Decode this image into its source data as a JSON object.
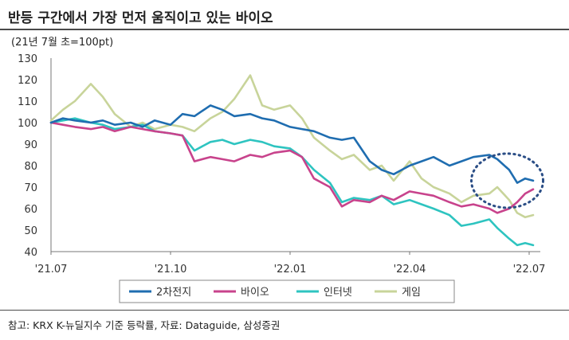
{
  "title": "반등 구간에서 가장 먼저 움직이고 있는 바이오",
  "unit_label": "(21년 7월 초=100pt)",
  "source": "참고: KRX K-뉴딜지수 기준 등락률, 자료: Dataguide, 삼성증권",
  "colors": {
    "2차전지": "#1f6db0",
    "바이오": "#c8438c",
    "인터넷": "#2ec4c0",
    "게임": "#c8d49a",
    "highlight": "#2b4e86"
  },
  "chart_data": {
    "type": "line",
    "x_ticks": [
      "'21.07",
      "'21.10",
      "'22.01",
      "'22.04",
      "'22.07"
    ],
    "ylim": [
      40,
      130
    ],
    "y_ticks": [
      40,
      50,
      60,
      70,
      80,
      90,
      100,
      110,
      120,
      130
    ],
    "x_range": [
      0,
      12.2
    ],
    "grid": false,
    "legend": "bottom",
    "annotation": "dotted circle highlighting late values",
    "series": [
      {
        "name": "2차전지",
        "color": "#1f6db0",
        "x": [
          0,
          0.3,
          0.6,
          1,
          1.3,
          1.6,
          2,
          2.3,
          2.6,
          3,
          3.3,
          3.6,
          4,
          4.3,
          4.6,
          5,
          5.3,
          5.6,
          6,
          6.3,
          6.6,
          7,
          7.3,
          7.6,
          8,
          8.3,
          8.6,
          9,
          9.3,
          9.6,
          10,
          10.3,
          10.6,
          11,
          11.2,
          11.5,
          11.7,
          11.9,
          12.1
        ],
        "y": [
          100,
          102,
          101,
          100,
          101,
          99,
          100,
          98,
          101,
          99,
          104,
          103,
          108,
          106,
          103,
          104,
          102,
          101,
          98,
          97,
          96,
          93,
          92,
          93,
          82,
          78,
          76,
          80,
          82,
          84,
          80,
          82,
          84,
          85,
          83,
          78,
          72,
          74,
          73
        ]
      },
      {
        "name": "바이오",
        "color": "#c8438c",
        "x": [
          0,
          0.3,
          0.6,
          1,
          1.3,
          1.6,
          2,
          2.3,
          2.6,
          3,
          3.3,
          3.6,
          4,
          4.3,
          4.6,
          5,
          5.3,
          5.6,
          6,
          6.3,
          6.6,
          7,
          7.3,
          7.6,
          8,
          8.3,
          8.6,
          9,
          9.3,
          9.6,
          10,
          10.3,
          10.6,
          11,
          11.2,
          11.5,
          11.7,
          11.9,
          12.1
        ],
        "y": [
          100,
          99,
          98,
          97,
          98,
          96,
          98,
          97,
          96,
          95,
          94,
          82,
          84,
          83,
          82,
          85,
          84,
          86,
          87,
          84,
          74,
          70,
          61,
          64,
          63,
          66,
          64,
          68,
          67,
          66,
          63,
          61,
          62,
          60,
          58,
          60,
          63,
          67,
          69
        ]
      },
      {
        "name": "인터넷",
        "color": "#2ec4c0",
        "x": [
          0,
          0.3,
          0.6,
          1,
          1.3,
          1.6,
          2,
          2.3,
          2.6,
          3,
          3.3,
          3.6,
          4,
          4.3,
          4.6,
          5,
          5.3,
          5.6,
          6,
          6.3,
          6.6,
          7,
          7.3,
          7.6,
          8,
          8.3,
          8.6,
          9,
          9.3,
          9.6,
          10,
          10.3,
          10.6,
          11,
          11.2,
          11.5,
          11.7,
          11.9,
          12.1
        ],
        "y": [
          100,
          101,
          102,
          100,
          99,
          97,
          98,
          99,
          96,
          95,
          94,
          87,
          91,
          92,
          90,
          92,
          91,
          89,
          88,
          84,
          78,
          72,
          63,
          65,
          64,
          66,
          62,
          64,
          62,
          60,
          57,
          52,
          53,
          55,
          51,
          46,
          43,
          44,
          43
        ]
      },
      {
        "name": "게임",
        "color": "#c8d49a",
        "x": [
          0,
          0.3,
          0.6,
          1,
          1.3,
          1.6,
          2,
          2.3,
          2.6,
          3,
          3.3,
          3.6,
          4,
          4.3,
          4.6,
          5,
          5.3,
          5.6,
          6,
          6.3,
          6.6,
          7,
          7.3,
          7.6,
          8,
          8.3,
          8.6,
          9,
          9.3,
          9.6,
          10,
          10.3,
          10.6,
          11,
          11.2,
          11.5,
          11.7,
          11.9,
          12.1
        ],
        "y": [
          101,
          106,
          110,
          118,
          112,
          104,
          98,
          100,
          97,
          99,
          98,
          96,
          102,
          105,
          111,
          122,
          108,
          106,
          108,
          102,
          93,
          87,
          83,
          85,
          78,
          80,
          73,
          82,
          74,
          70,
          67,
          63,
          66,
          67,
          70,
          64,
          58,
          56,
          57
        ]
      }
    ]
  }
}
